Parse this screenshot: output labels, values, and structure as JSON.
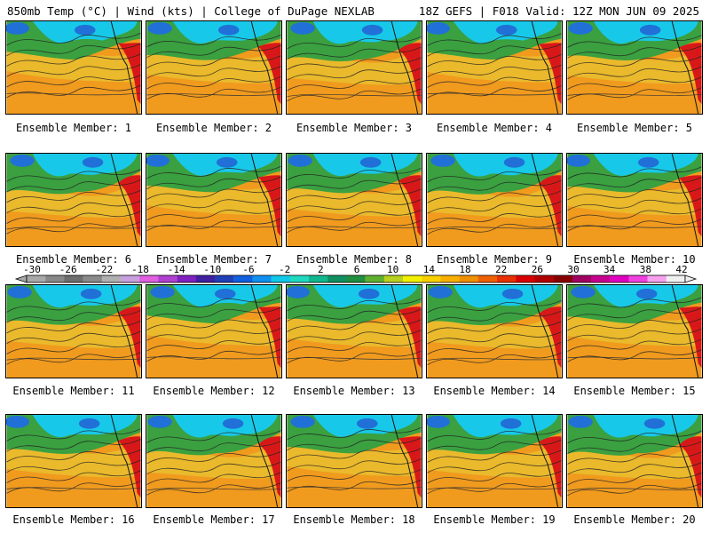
{
  "header": {
    "left_title": "850mb Temp (°C) | Wind (kts) | College of DuPage NEXLAB",
    "right_title": "18Z GEFS | F018 Valid: 12Z MON JUN 09 2025"
  },
  "members": [
    "Ensemble Member: 1",
    "Ensemble Member: 2",
    "Ensemble Member: 3",
    "Ensemble Member: 4",
    "Ensemble Member: 5",
    "Ensemble Member: 6",
    "Ensemble Member: 7",
    "Ensemble Member: 8",
    "Ensemble Member: 9",
    "Ensemble Member: 10",
    "Ensemble Member: 11",
    "Ensemble Member: 12",
    "Ensemble Member: 13",
    "Ensemble Member: 14",
    "Ensemble Member: 15",
    "Ensemble Member: 16",
    "Ensemble Member: 17",
    "Ensemble Member: 18",
    "Ensemble Member: 19",
    "Ensemble Member: 20"
  ],
  "colorbar": {
    "tick_labels": [
      "-30",
      "-26",
      "-22",
      "-18",
      "-14",
      "-10",
      "-6",
      "-2",
      "2",
      "6",
      "10",
      "14",
      "18",
      "22",
      "26",
      "30",
      "34",
      "38",
      "42"
    ],
    "colors": [
      "#a8a8a8",
      "#888888",
      "#6e6e6e",
      "#8a8a8a",
      "#b0b0b0",
      "#c8a0e0",
      "#e060e0",
      "#b040d0",
      "#8020c0",
      "#4020a0",
      "#2040b8",
      "#1060e0",
      "#1090f0",
      "#10c8e8",
      "#20d8c0",
      "#10b890",
      "#109060",
      "#209040",
      "#60b030",
      "#b8d020",
      "#f0f000",
      "#f8d000",
      "#f8b000",
      "#f09000",
      "#f06000",
      "#e83000",
      "#d80000",
      "#b00000",
      "#880000",
      "#a00060",
      "#c80090",
      "#e000c0",
      "#f040e0",
      "#f8a0f0",
      "#f0f0f0"
    ]
  },
  "colors": {
    "land_warm": "#f09a1e",
    "land_mid": "#e8c030",
    "cool_green": "#3aa040",
    "cold_cyan": "#18c8e8",
    "cold_blue": "#2070d8",
    "hot_red": "#d81818"
  }
}
